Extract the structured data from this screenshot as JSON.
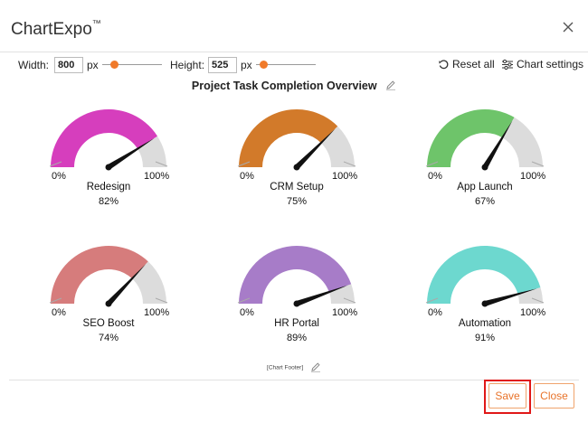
{
  "header": {
    "title": "ChartExpo",
    "trademark": "™"
  },
  "toolbar": {
    "width_label": "Width:",
    "width_value": "800",
    "width_unit": "px",
    "height_label": "Height:",
    "height_value": "525",
    "height_unit": "px",
    "reset_label": "Reset all",
    "settings_label": "Chart settings"
  },
  "chart_data": {
    "type": "gauge",
    "title": "Project Task Completion Overview",
    "footer": "[Chart Footer]",
    "gauges": [
      {
        "name": "Redesign",
        "value": 82,
        "value_label": "82%",
        "min_label": "0%",
        "max_label": "100%",
        "color": "#d63ebd"
      },
      {
        "name": "CRM Setup",
        "value": 75,
        "value_label": "75%",
        "min_label": "0%",
        "max_label": "100%",
        "color": "#d27a2a"
      },
      {
        "name": "App Launch",
        "value": 67,
        "value_label": "67%",
        "min_label": "0%",
        "max_label": "100%",
        "color": "#6ec46a"
      },
      {
        "name": "SEO Boost",
        "value": 74,
        "value_label": "74%",
        "min_label": "0%",
        "max_label": "100%",
        "color": "#d67c7c"
      },
      {
        "name": "HR Portal",
        "value": 89,
        "value_label": "89%",
        "min_label": "0%",
        "max_label": "100%",
        "color": "#a77cc8"
      },
      {
        "name": "Automation",
        "value": 91,
        "value_label": "91%",
        "min_label": "0%",
        "max_label": "100%",
        "color": "#6dd8cf"
      }
    ]
  },
  "buttons": {
    "save": "Save",
    "close": "Close"
  },
  "colors": {
    "accent": "#e8732a",
    "track": "#dcdcdc",
    "highlight": "#e01818"
  }
}
